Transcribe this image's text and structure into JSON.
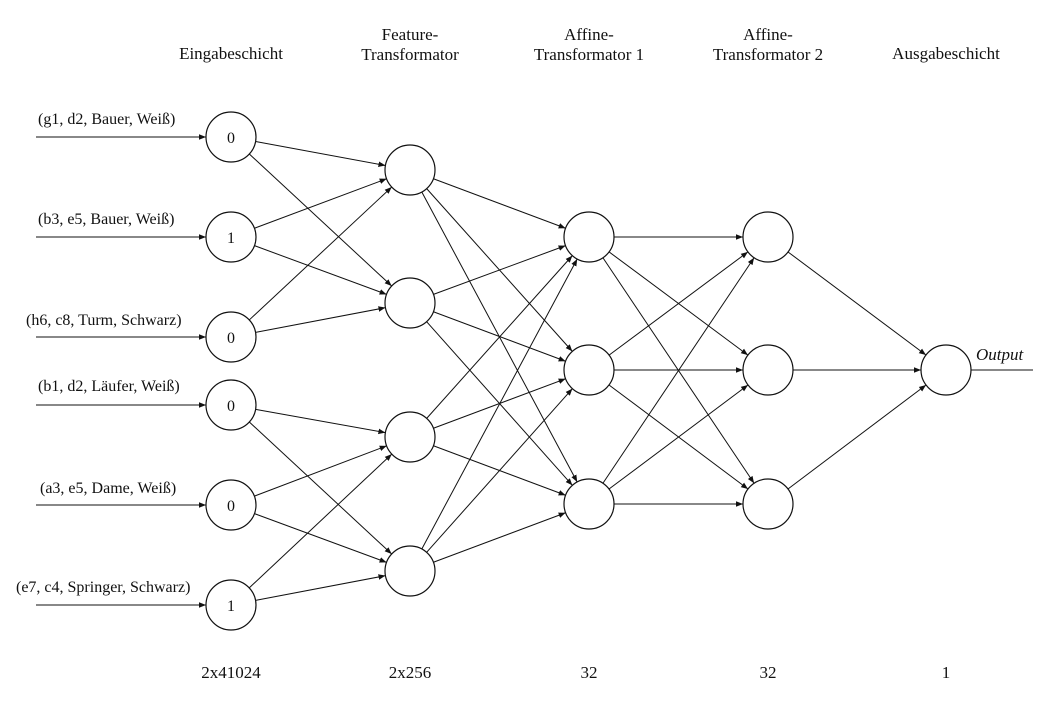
{
  "layers": [
    {
      "title_lines": [
        "Eingabeschicht"
      ],
      "count": "2x41024"
    },
    {
      "title_lines": [
        "Feature-",
        "Transformator"
      ],
      "count": "2x256"
    },
    {
      "title_lines": [
        "Affine-",
        "Transformator 1"
      ],
      "count": "32"
    },
    {
      "title_lines": [
        "Affine-",
        "Transformator 2"
      ],
      "count": "32"
    },
    {
      "title_lines": [
        "Ausgabeschicht"
      ],
      "count": "1"
    }
  ],
  "inputs": [
    {
      "label": "(g1, d2, Bauer, Weiß)",
      "value": "0"
    },
    {
      "label": "(b3, e5, Bauer, Weiß)",
      "value": "1"
    },
    {
      "label": "(h6, c8, Turm, Schwarz)",
      "value": "0"
    },
    {
      "label": "(b1, d2, Läufer, Weiß)",
      "value": "0"
    },
    {
      "label": "(a3, e5, Dame, Weiß)",
      "value": "0"
    },
    {
      "label": "(e7, c4, Springer, Schwarz)",
      "value": "1"
    }
  ],
  "output_label": "Output"
}
